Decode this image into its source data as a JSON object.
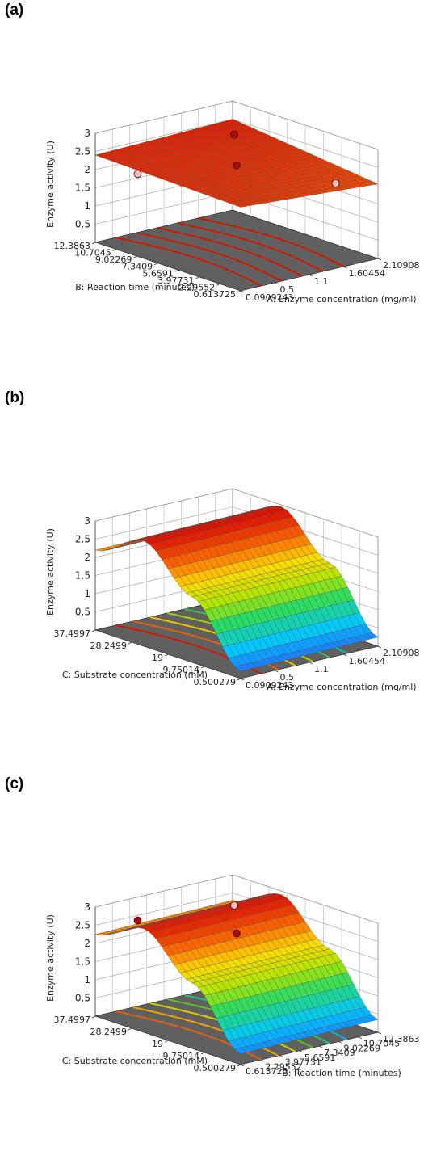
{
  "chart_data": [
    {
      "panel_label": "(a)",
      "type": "surface3d",
      "zlabel": "Enzyme activity (U)",
      "zticks": [
        "3",
        "2.5",
        "2",
        "1.5",
        "1",
        "0.5"
      ],
      "right_axis_label": "A: Enzyme concentration (mg/ml)",
      "right_axis_ticks": [
        "0.0909243",
        "0.5",
        "1.1",
        "1.60454",
        "2.10908"
      ],
      "left_axis_label": "B: Reaction time (minutes)",
      "left_axis_ticks": [
        "0.613725",
        "2.29552",
        "3.97731",
        "5.6591",
        "7.3409",
        "9.02269",
        "10.7045",
        "12.3863"
      ],
      "surface": {
        "front": 2.3,
        "left": 2.4,
        "right": 2.05,
        "back": 2.5,
        "colormap": "red-dominant (flat surface near 2.1–2.5 U)"
      },
      "design_points": [
        {
          "z": 2.52,
          "marker": "dark-red",
          "location": "back"
        },
        {
          "z": 2.34,
          "marker": "dark-red",
          "location": "center"
        },
        {
          "z": 1.95,
          "marker": "pink",
          "location": "left"
        },
        {
          "z": 2.0,
          "marker": "pink",
          "location": "right"
        }
      ],
      "contour_colors": [
        "#cc1a00",
        "#cc1a00",
        "#cc1a00",
        "#cc1a00",
        "#cc1a00"
      ]
    },
    {
      "panel_label": "(b)",
      "type": "surface3d",
      "zlabel": "Enzyme activity (U)",
      "zticks": [
        "3",
        "2.5",
        "2",
        "1.5",
        "1",
        "0.5"
      ],
      "right_axis_label": "A: Enzyme concentration (mg/ml)",
      "right_axis_ticks": [
        "0.0909243",
        "0.5",
        "1.1",
        "1.60454",
        "2.10908"
      ],
      "left_axis_label": "C: Substrate concentration (mM)",
      "left_axis_ticks": [
        "0.500279",
        "9.75014",
        "19",
        "28.2499",
        "37.4997"
      ],
      "surface": {
        "profile_along_substrate": [
          0.2,
          1.8,
          2.9,
          2.2
        ],
        "colormap": "jet (blue low, red high)"
      },
      "contour_colors": [
        "#cc1a00",
        "#e06010",
        "#f0c000",
        "#a0d010",
        "#30c050",
        "#10c0b0"
      ]
    },
    {
      "panel_label": "(c)",
      "type": "surface3d",
      "zlabel": "Enzyme activity (U)",
      "zticks": [
        "3",
        "2.5",
        "2",
        "1.5",
        "1",
        "0.5"
      ],
      "right_axis_label": "B: Reaction time (minutes)",
      "right_axis_ticks": [
        "0.613725",
        "2.29552",
        "3.97731",
        "5.6591",
        "7.3409",
        "9.02269",
        "10.7045",
        "12.3863"
      ],
      "left_axis_label": "C: Substrate concentration (mM)",
      "left_axis_ticks": [
        "0.500279",
        "9.75014",
        "19",
        "28.2499",
        "37.4997"
      ],
      "surface": {
        "profile_along_substrate": [
          0.3,
          1.8,
          2.85,
          2.25
        ],
        "colormap": "jet (blue low, red high)"
      },
      "design_points": [
        {
          "z": 2.7,
          "marker": "dark-red",
          "location": "left"
        },
        {
          "z": 2.5,
          "marker": "dark-red",
          "location": "center"
        },
        {
          "z": 2.6,
          "marker": "pink",
          "location": "back"
        }
      ],
      "contour_colors": [
        "#e06010",
        "#f0a000",
        "#d0d000",
        "#60c020",
        "#20c080",
        "#10b0e0"
      ]
    }
  ]
}
